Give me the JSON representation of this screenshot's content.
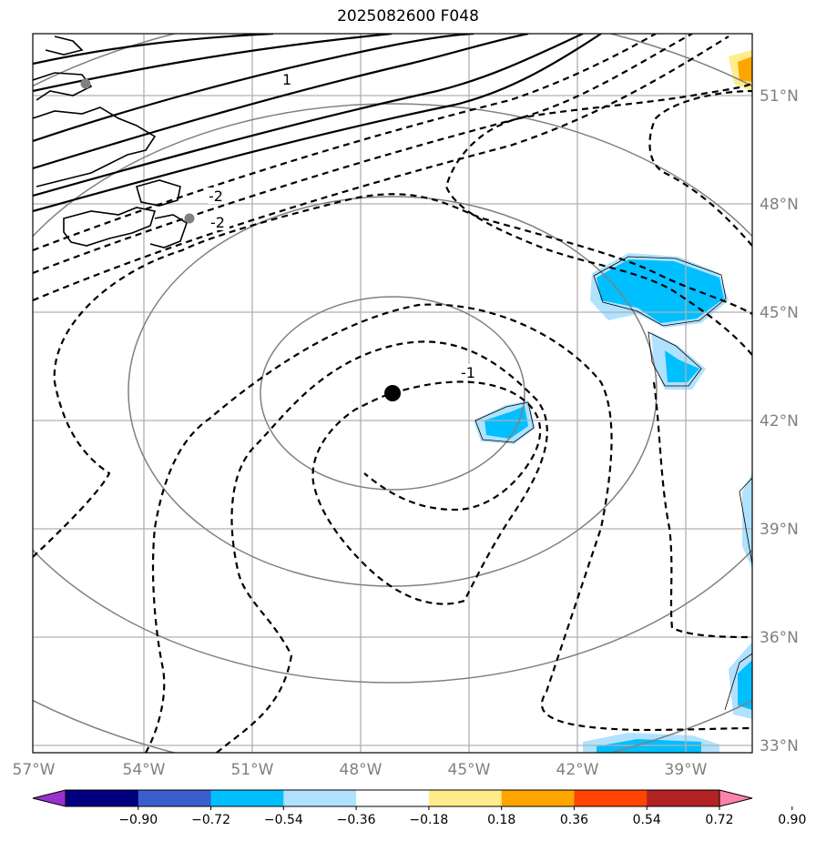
{
  "title": "2025082600 F048",
  "map": {
    "lat_labels": [
      "51°N",
      "48°N",
      "45°N",
      "42°N",
      "39°N",
      "36°N",
      "33°N"
    ],
    "lon_labels": [
      "57°W",
      "54°W",
      "51°W",
      "48°W",
      "45°W",
      "42°W",
      "39°W"
    ],
    "contour_labels": [
      "1",
      "-2",
      "-2",
      "-1"
    ],
    "center_marker": {
      "lon": -47.0,
      "lat": 42.75
    }
  },
  "colorbar": {
    "labels": [
      "−0.90",
      "−0.72",
      "−0.54",
      "−0.36",
      "−0.18",
      "0.18",
      "0.36",
      "0.54",
      "0.72",
      "0.90"
    ],
    "colors": [
      "#9932cc",
      "#000080",
      "#3a5fcd",
      "#00bfff",
      "#b0e2ff",
      "#ffffff",
      "#ffec8b",
      "#ffa500",
      "#ff4500",
      "#b22222",
      "#ff82ab"
    ]
  }
}
